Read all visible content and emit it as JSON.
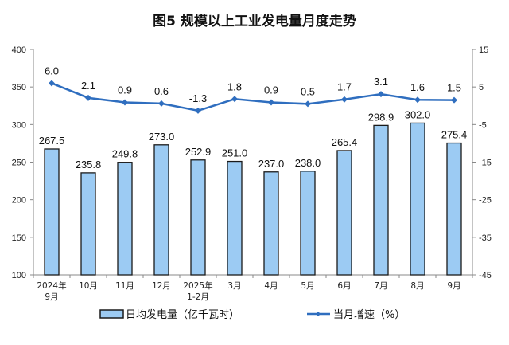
{
  "chart_data": {
    "type": "bar+line",
    "title": "图5  规模以上工业发电量月度走势",
    "categories": [
      "2024年\n9月",
      "10月",
      "11月",
      "12月",
      "2025年\n1-2月",
      "3月",
      "4月",
      "5月",
      "6月",
      "7月",
      "8月",
      "9月"
    ],
    "series": [
      {
        "name": "日均发电量（亿千瓦时）",
        "type": "bar",
        "axis": "left",
        "color": "#9ccbf3",
        "values": [
          267.5,
          235.8,
          249.8,
          273.0,
          252.9,
          251.0,
          237.0,
          238.0,
          265.4,
          298.9,
          302.0,
          275.4
        ]
      },
      {
        "name": "当月增速（%）",
        "type": "line",
        "axis": "right",
        "color": "#2f6ebf",
        "values": [
          6.0,
          2.1,
          0.9,
          0.6,
          -1.3,
          1.8,
          0.9,
          0.5,
          1.7,
          3.1,
          1.6,
          1.5
        ]
      }
    ],
    "left_axis": {
      "ylim": [
        100,
        400
      ],
      "ticks": [
        100,
        150,
        200,
        250,
        300,
        350,
        400
      ]
    },
    "right_axis": {
      "ylim": [
        -45,
        15
      ],
      "ticks": [
        -45,
        -35,
        -25,
        -15,
        -5,
        5,
        15
      ]
    },
    "grid": false,
    "legend": "bottom"
  }
}
